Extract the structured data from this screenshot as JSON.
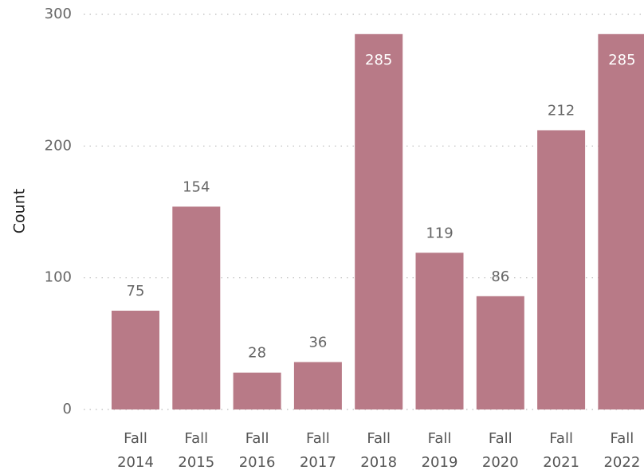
{
  "chart_data": {
    "type": "bar",
    "y_label": "Count",
    "categories": [
      "Fall 2014",
      "Fall 2015",
      "Fall 2016",
      "Fall 2017",
      "Fall 2018",
      "Fall 2019",
      "Fall 2020",
      "Fall 2021",
      "Fall 2022"
    ],
    "values": [
      75,
      154,
      28,
      36,
      285,
      119,
      86,
      212,
      285
    ],
    "color": "#b87a87",
    "ylim": [
      0,
      300
    ],
    "yticks": [
      0,
      100,
      200,
      300
    ],
    "grid": true
  }
}
